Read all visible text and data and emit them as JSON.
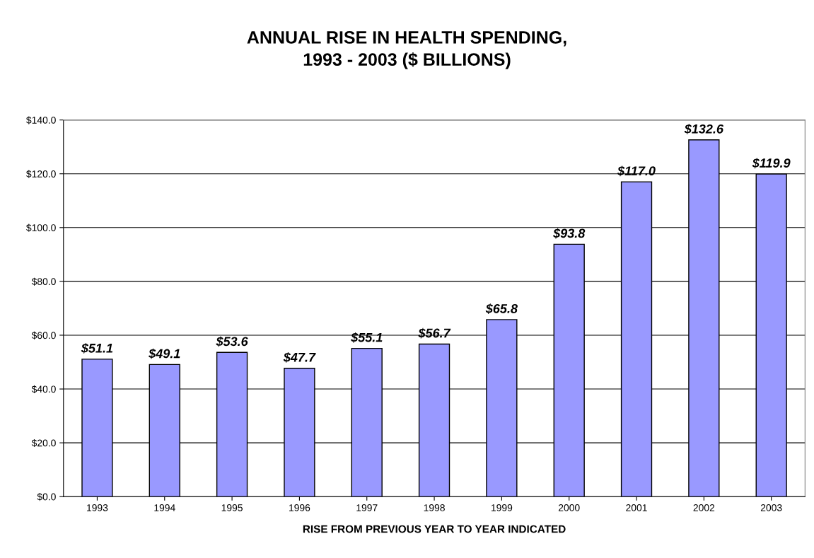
{
  "chart_data": {
    "type": "bar",
    "title": "ANNUAL RISE IN HEALTH SPENDING,\n1993 - 2003 ($ BILLIONS)",
    "xlabel": "RISE FROM PREVIOUS YEAR TO YEAR INDICATED",
    "categories": [
      "1993",
      "1994",
      "1995",
      "1996",
      "1997",
      "1998",
      "1999",
      "2000",
      "2001",
      "2002",
      "2003"
    ],
    "values": [
      51.1,
      49.1,
      53.6,
      47.7,
      55.1,
      56.7,
      65.8,
      93.8,
      117.0,
      132.6,
      119.9
    ],
    "value_labels": [
      "$51.1",
      "$49.1",
      "$53.6",
      "$47.7",
      "$55.1",
      "$56.7",
      "$65.8",
      "$93.8",
      "$117.0",
      "$132.6",
      "$119.9"
    ],
    "color": "#9999ff",
    "ylim": [
      0,
      140
    ],
    "yticks": [
      {
        "value": 0,
        "label": "$0.0"
      },
      {
        "value": 20,
        "label": "$20.0"
      },
      {
        "value": 40,
        "label": "$40.0"
      },
      {
        "value": 60,
        "label": "$60.0"
      },
      {
        "value": 80,
        "label": "$80.0"
      },
      {
        "value": 100,
        "label": "$100.0"
      },
      {
        "value": 120,
        "label": "$120.0"
      },
      {
        "value": 140,
        "label": "$140.0"
      }
    ],
    "grid": "y",
    "legend": false
  }
}
